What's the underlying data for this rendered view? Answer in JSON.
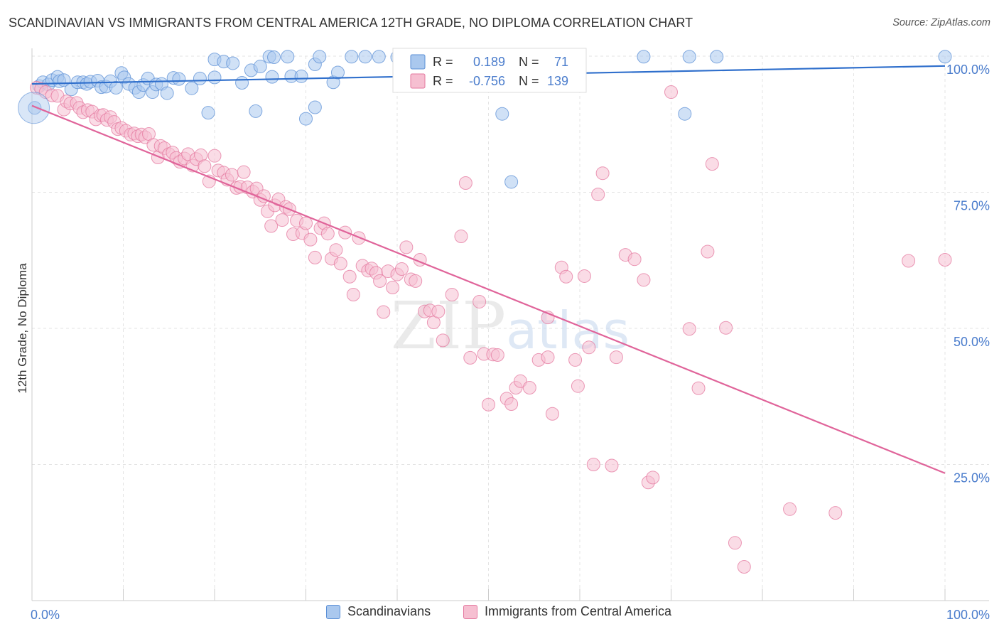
{
  "header": {
    "title": "SCANDINAVIAN VS IMMIGRANTS FROM CENTRAL AMERICA 12TH GRADE, NO DIPLOMA CORRELATION CHART",
    "source": "Source: ZipAtlas.com"
  },
  "watermark": "ZIPatlas",
  "colors": {
    "blue": "#5b8fd6",
    "blue_fill": "#aac8ee",
    "blue_line": "#2f6fcc",
    "pink": "#e4789f",
    "pink_fill": "#f6bfd1",
    "pink_line": "#e0649a",
    "axis_text": "#4a7ccc",
    "grid": "#e3e3e3"
  },
  "stats_box": {
    "rows": [
      {
        "r_label": "R =",
        "r_value": "0.189",
        "n_label": "N =",
        "n_value": "71",
        "series": "blue"
      },
      {
        "r_label": "R =",
        "r_value": "-0.756",
        "n_label": "N =",
        "n_value": "139",
        "series": "pink"
      }
    ]
  },
  "chart_data": {
    "type": "scatter",
    "title": "SCANDINAVIAN VS IMMIGRANTS FROM CENTRAL AMERICA 12TH GRADE, NO DIPLOMA CORRELATION CHART",
    "xlabel": "",
    "ylabel": "12th Grade, No Diploma",
    "xlim": [
      0,
      100
    ],
    "ylim": [
      0,
      100
    ],
    "x_tick_labels": [
      {
        "value": 0,
        "label": "0.0%"
      },
      {
        "value": 100,
        "label": "100.0%"
      }
    ],
    "y_tick_labels": [
      {
        "value": 100,
        "label": "100.0%"
      },
      {
        "value": 75,
        "label": "75.0%"
      },
      {
        "value": 50,
        "label": "50.0%"
      },
      {
        "value": 25,
        "label": "25.0%"
      }
    ],
    "grid": true,
    "legend": [
      "Scandinavians",
      "Immigrants from Central America"
    ],
    "legend_position": "bottom-center",
    "series": [
      {
        "name": "Scandinavians",
        "color": "blue",
        "r": 0.189,
        "n": 71,
        "trend": {
          "x": [
            0,
            100
          ],
          "y": [
            94.9,
            98.2
          ]
        },
        "points": [
          [
            0.3,
            90.5
          ],
          [
            0.8,
            94.5
          ],
          [
            1.2,
            95.2
          ],
          [
            1.8,
            94.8
          ],
          [
            2.2,
            95.6
          ],
          [
            2.8,
            96.2
          ],
          [
            3.0,
            95.4
          ],
          [
            3.5,
            95.6
          ],
          [
            4.3,
            93.9
          ],
          [
            5.0,
            95.2
          ],
          [
            5.6,
            95.2
          ],
          [
            6.0,
            94.9
          ],
          [
            6.4,
            95.3
          ],
          [
            7.2,
            95.5
          ],
          [
            7.6,
            94.3
          ],
          [
            8.1,
            94.4
          ],
          [
            8.6,
            95.4
          ],
          [
            9.2,
            94.2
          ],
          [
            9.8,
            96.9
          ],
          [
            10.1,
            96.1
          ],
          [
            10.6,
            94.9
          ],
          [
            11.3,
            94.2
          ],
          [
            11.7,
            93.4
          ],
          [
            12.2,
            94.7
          ],
          [
            12.7,
            95.9
          ],
          [
            13.2,
            93.4
          ],
          [
            13.6,
            94.8
          ],
          [
            14.2,
            94.9
          ],
          [
            14.8,
            93.2
          ],
          [
            15.5,
            96.0
          ],
          [
            16.1,
            95.8
          ],
          [
            17.5,
            94.1
          ],
          [
            18.4,
            95.9
          ],
          [
            20.0,
            96.1
          ],
          [
            20.0,
            99.4
          ],
          [
            19.3,
            89.6
          ],
          [
            21.0,
            99.0
          ],
          [
            22.0,
            98.7
          ],
          [
            23.0,
            95.1
          ],
          [
            24.0,
            97.4
          ],
          [
            24.5,
            89.9
          ],
          [
            25.0,
            98.1
          ],
          [
            26.0,
            99.9
          ],
          [
            26.5,
            99.8
          ],
          [
            26.3,
            96.2
          ],
          [
            28.0,
            99.9
          ],
          [
            28.4,
            96.3
          ],
          [
            29.5,
            96.3
          ],
          [
            30.0,
            88.5
          ],
          [
            31.0,
            90.6
          ],
          [
            31.0,
            98.5
          ],
          [
            31.5,
            99.9
          ],
          [
            33.0,
            95.2
          ],
          [
            33.5,
            97.0
          ],
          [
            35.0,
            99.9
          ],
          [
            36.5,
            99.9
          ],
          [
            38.0,
            99.9
          ],
          [
            40.0,
            99.8
          ],
          [
            41.0,
            99.9
          ],
          [
            43.0,
            99.3
          ],
          [
            47.0,
            99.8
          ],
          [
            49.0,
            99.8
          ],
          [
            50.5,
            99.9
          ],
          [
            51.0,
            99.8
          ],
          [
            51.5,
            89.4
          ],
          [
            52.5,
            76.9
          ],
          [
            67.0,
            99.9
          ],
          [
            72.0,
            99.9
          ],
          [
            71.5,
            89.4
          ],
          [
            75.0,
            99.9
          ],
          [
            100.0,
            99.9
          ]
        ]
      },
      {
        "name": "Immigrants from Central America",
        "color": "pink",
        "r": -0.756,
        "n": 139,
        "trend": {
          "x": [
            0,
            100
          ],
          "y": [
            90.9,
            23.4
          ]
        },
        "points": [
          [
            0.5,
            94.2
          ],
          [
            1.0,
            94.0
          ],
          [
            1.5,
            93.4
          ],
          [
            2.2,
            92.8
          ],
          [
            2.8,
            92.7
          ],
          [
            3.5,
            90.2
          ],
          [
            3.8,
            91.7
          ],
          [
            4.2,
            91.3
          ],
          [
            4.9,
            91.4
          ],
          [
            5.2,
            90.5
          ],
          [
            5.6,
            89.7
          ],
          [
            6.1,
            90.1
          ],
          [
            6.6,
            89.8
          ],
          [
            7.0,
            88.4
          ],
          [
            7.5,
            89.1
          ],
          [
            7.8,
            89.2
          ],
          [
            8.2,
            88.3
          ],
          [
            8.6,
            88.8
          ],
          [
            9.0,
            87.9
          ],
          [
            9.4,
            86.6
          ],
          [
            9.8,
            86.8
          ],
          [
            10.3,
            86.3
          ],
          [
            10.8,
            85.6
          ],
          [
            11.2,
            85.8
          ],
          [
            11.6,
            85.3
          ],
          [
            12.0,
            85.6
          ],
          [
            12.4,
            85.1
          ],
          [
            12.8,
            85.7
          ],
          [
            13.3,
            83.7
          ],
          [
            13.8,
            81.4
          ],
          [
            14.1,
            83.5
          ],
          [
            14.5,
            83.1
          ],
          [
            15.0,
            82.0
          ],
          [
            15.4,
            82.3
          ],
          [
            15.8,
            81.3
          ],
          [
            16.2,
            80.6
          ],
          [
            16.7,
            81.2
          ],
          [
            17.1,
            82.0
          ],
          [
            17.6,
            79.9
          ],
          [
            18.0,
            81.1
          ],
          [
            18.5,
            81.8
          ],
          [
            18.9,
            79.8
          ],
          [
            19.4,
            77.0
          ],
          [
            20.0,
            81.7
          ],
          [
            20.4,
            79.0
          ],
          [
            21.0,
            78.6
          ],
          [
            21.4,
            77.3
          ],
          [
            21.9,
            78.2
          ],
          [
            22.4,
            75.8
          ],
          [
            22.8,
            76.0
          ],
          [
            23.2,
            78.7
          ],
          [
            23.6,
            75.9
          ],
          [
            24.2,
            75.1
          ],
          [
            24.6,
            75.7
          ],
          [
            25.0,
            73.6
          ],
          [
            25.4,
            74.3
          ],
          [
            25.8,
            71.5
          ],
          [
            26.2,
            68.8
          ],
          [
            26.6,
            72.6
          ],
          [
            27.0,
            73.7
          ],
          [
            27.4,
            69.9
          ],
          [
            27.8,
            72.3
          ],
          [
            28.2,
            71.9
          ],
          [
            28.6,
            67.3
          ],
          [
            29.0,
            69.8
          ],
          [
            29.6,
            67.5
          ],
          [
            30.0,
            69.3
          ],
          [
            30.5,
            66.3
          ],
          [
            31.0,
            63.0
          ],
          [
            31.6,
            68.4
          ],
          [
            32.0,
            69.3
          ],
          [
            32.4,
            67.4
          ],
          [
            32.8,
            62.8
          ],
          [
            33.3,
            64.4
          ],
          [
            33.8,
            61.9
          ],
          [
            34.3,
            67.6
          ],
          [
            34.8,
            59.5
          ],
          [
            35.2,
            56.2
          ],
          [
            35.8,
            66.6
          ],
          [
            36.2,
            61.5
          ],
          [
            36.8,
            60.6
          ],
          [
            37.2,
            61.0
          ],
          [
            37.7,
            60.2
          ],
          [
            38.1,
            58.7
          ],
          [
            38.5,
            53.0
          ],
          [
            39.0,
            60.5
          ],
          [
            39.5,
            57.5
          ],
          [
            40.0,
            59.9
          ],
          [
            40.5,
            60.9
          ],
          [
            41.0,
            64.9
          ],
          [
            41.5,
            59.0
          ],
          [
            42.0,
            58.7
          ],
          [
            42.5,
            62.6
          ],
          [
            43.0,
            53.1
          ],
          [
            43.6,
            53.3
          ],
          [
            44.0,
            51.1
          ],
          [
            44.5,
            53.1
          ],
          [
            45.0,
            47.8
          ],
          [
            46.0,
            56.2
          ],
          [
            47.0,
            66.9
          ],
          [
            47.5,
            76.7
          ],
          [
            48.0,
            44.6
          ],
          [
            49.0,
            54.9
          ],
          [
            49.5,
            45.3
          ],
          [
            50.0,
            36.0
          ],
          [
            50.5,
            45.2
          ],
          [
            51.0,
            45.1
          ],
          [
            52.0,
            37.1
          ],
          [
            52.5,
            36.1
          ],
          [
            53.0,
            39.1
          ],
          [
            53.5,
            40.3
          ],
          [
            54.5,
            39.1
          ],
          [
            55.5,
            44.2
          ],
          [
            56.5,
            52.0
          ],
          [
            56.5,
            44.7
          ],
          [
            57.0,
            34.3
          ],
          [
            58.0,
            61.2
          ],
          [
            58.5,
            59.5
          ],
          [
            59.5,
            44.2
          ],
          [
            59.8,
            39.4
          ],
          [
            60.5,
            59.6
          ],
          [
            61.0,
            46.5
          ],
          [
            61.5,
            25.0
          ],
          [
            62.0,
            74.6
          ],
          [
            62.5,
            78.5
          ],
          [
            63.5,
            24.8
          ],
          [
            64.0,
            44.7
          ],
          [
            65.0,
            63.5
          ],
          [
            66.0,
            62.7
          ],
          [
            67.0,
            58.9
          ],
          [
            67.5,
            21.7
          ],
          [
            68.0,
            22.6
          ],
          [
            70.0,
            93.4
          ],
          [
            72.0,
            49.9
          ],
          [
            73.0,
            39.0
          ],
          [
            74.0,
            64.1
          ],
          [
            74.5,
            80.2
          ],
          [
            76.0,
            50.1
          ],
          [
            77.0,
            10.6
          ],
          [
            78.0,
            6.2
          ],
          [
            83.0,
            16.8
          ],
          [
            88.0,
            16.1
          ],
          [
            96.0,
            62.4
          ],
          [
            100.0,
            62.6
          ]
        ]
      }
    ]
  },
  "legend": {
    "items": [
      {
        "label": "Scandinavians",
        "series": "blue"
      },
      {
        "label": "Immigrants from Central America",
        "series": "pink"
      }
    ]
  }
}
